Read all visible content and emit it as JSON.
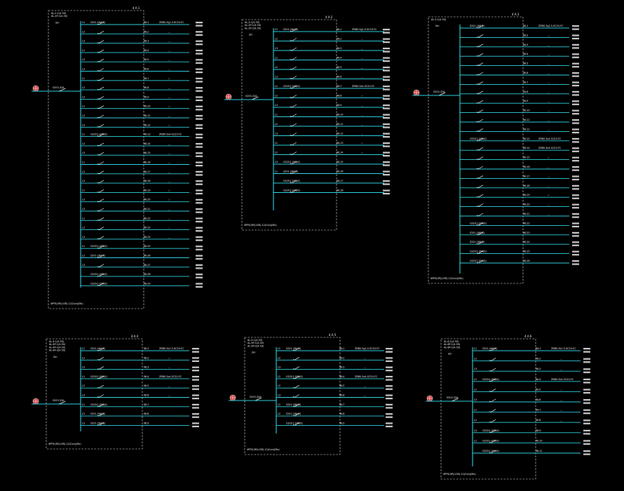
{
  "panels": [
    {
      "id": "p1",
      "label": "4 A 1",
      "header": [
        "AL-1-1(4-50)",
        "AL-1P-1(4-50)"
      ],
      "subtitle": "Sm",
      "incomer": "S203-32A",
      "footer": "4PPS(4P)(LSR)-12(Con)(Mo)",
      "feeders": [
        {
          "phase": "L1",
          "breaker": "S201-16A(K)",
          "circuit": "WL1",
          "cable": "ZRBV-3x2.5-SC20-FC",
          "mark": "..."
        },
        {
          "phase": "L2",
          "breaker": "",
          "circuit": "WL2",
          "cable": "",
          "mark": "..."
        },
        {
          "phase": "L3",
          "breaker": "",
          "circuit": "WL3",
          "cable": "",
          "mark": "..."
        },
        {
          "phase": "L1",
          "breaker": "",
          "circuit": "WL4",
          "cable": "",
          "mark": "..."
        },
        {
          "phase": "L2",
          "breaker": "",
          "circuit": "WL5",
          "cable": "",
          "mark": "..."
        },
        {
          "phase": "L3",
          "breaker": "",
          "circuit": "WL6",
          "cable": "",
          "mark": "..."
        },
        {
          "phase": "L1",
          "breaker": "",
          "circuit": "WL7",
          "cable": "",
          "mark": "✓"
        },
        {
          "phase": "L2",
          "breaker": "",
          "circuit": "WL8",
          "cable": "",
          "mark": "..."
        },
        {
          "phase": "L3",
          "breaker": "",
          "circuit": "WL9",
          "cable": "",
          "mark": "..."
        },
        {
          "phase": "L1",
          "breaker": "",
          "circuit": "WL10",
          "cable": "",
          "mark": "✓"
        },
        {
          "phase": "L2",
          "breaker": "",
          "circuit": "WL11",
          "cable": "",
          "mark": "..."
        },
        {
          "phase": "L3",
          "breaker": "",
          "circuit": "WL12",
          "cable": "",
          "mark": "✓"
        },
        {
          "phase": "L1",
          "breaker": "GS201-20A(K)",
          "circuit": "WL13",
          "cable": "ZRBV-3x4-SC20-FC",
          "mark": ""
        },
        {
          "phase": "L2",
          "breaker": "",
          "circuit": "WL14",
          "cable": "",
          "mark": "..."
        },
        {
          "phase": "L3",
          "breaker": "",
          "circuit": "WL15",
          "cable": "",
          "mark": "..."
        },
        {
          "phase": "L1",
          "breaker": "",
          "circuit": "WL16",
          "cable": "",
          "mark": "..."
        },
        {
          "phase": "L2",
          "breaker": "",
          "circuit": "WL17",
          "cable": "",
          "mark": "..."
        },
        {
          "phase": "L3",
          "breaker": "",
          "circuit": "WL18",
          "cable": "",
          "mark": "..."
        },
        {
          "phase": "L1",
          "breaker": "",
          "circuit": "WL19",
          "cable": "",
          "mark": "✓"
        },
        {
          "phase": "L2",
          "breaker": "",
          "circuit": "WL20",
          "cable": "",
          "mark": "✓"
        },
        {
          "phase": "L3",
          "breaker": "",
          "circuit": "WL21",
          "cable": "",
          "mark": "..."
        },
        {
          "phase": "L1",
          "breaker": "",
          "circuit": "WL22",
          "cable": "",
          "mark": "..."
        },
        {
          "phase": "L2",
          "breaker": "",
          "circuit": "WL23",
          "cable": "",
          "mark": "..."
        },
        {
          "phase": "L3",
          "breaker": "",
          "circuit": "WL24",
          "cable": "",
          "mark": "..."
        },
        {
          "phase": "L1",
          "breaker": "GS201-20A(K)",
          "circuit": "WL25",
          "cable": "",
          "mark": ""
        },
        {
          "phase": "L2",
          "breaker": "S201-16A(K)",
          "circuit": "WL26",
          "cable": "",
          "mark": ""
        },
        {
          "phase": "L3",
          "breaker": "",
          "circuit": "WL27",
          "cable": "",
          "mark": ""
        },
        {
          "phase": "",
          "breaker": "GS201-20A(K)",
          "circuit": "WL28",
          "cable": "",
          "mark": ""
        },
        {
          "phase": "",
          "breaker": "GS201-20A(K)",
          "circuit": "WL29",
          "cable": "",
          "mark": ""
        }
      ]
    },
    {
      "id": "p2",
      "label": "4 A 2",
      "header": [
        "AL-2-1(4-50)",
        "AL-2P-1(4-50)",
        "AL-2P-2(4-50)"
      ],
      "subtitle": "Sm",
      "incomer": "S203-32A",
      "footer": "4PPS(4P)(LSR)-12(Con)(Mo)",
      "feeders": [
        {
          "phase": "L1",
          "breaker": "S201-16A(K)",
          "circuit": "WL1",
          "cable": "ZRBV-3x2.5-SC20-FC",
          "mark": "..."
        },
        {
          "phase": "L2",
          "breaker": "",
          "circuit": "WL2",
          "cable": "",
          "mark": "..."
        },
        {
          "phase": "L3",
          "breaker": "",
          "circuit": "WL3",
          "cable": "",
          "mark": "..."
        },
        {
          "phase": "L1",
          "breaker": "",
          "circuit": "WL4",
          "cable": "",
          "mark": "..."
        },
        {
          "phase": "L2",
          "breaker": "",
          "circuit": "WL5",
          "cable": "",
          "mark": "..."
        },
        {
          "phase": "L3",
          "breaker": "",
          "circuit": "WL6",
          "cable": "",
          "mark": "..."
        },
        {
          "phase": "L1",
          "breaker": "GS201-20A(K)",
          "circuit": "WL7",
          "cable": "ZRBV-3x4-SC20-FC",
          "mark": ""
        },
        {
          "phase": "L2",
          "breaker": "",
          "circuit": "WL8",
          "cable": "",
          "mark": "✓"
        },
        {
          "phase": "L3",
          "breaker": "",
          "circuit": "WL9",
          "cable": "",
          "mark": "..."
        },
        {
          "phase": "L1",
          "breaker": "",
          "circuit": "WL10",
          "cable": "",
          "mark": "..."
        },
        {
          "phase": "L2",
          "breaker": "",
          "circuit": "WL11",
          "cable": "",
          "mark": "..."
        },
        {
          "phase": "L3",
          "breaker": "",
          "circuit": "WL12",
          "cable": "",
          "mark": "..."
        },
        {
          "phase": "L1",
          "breaker": "",
          "circuit": "WL13",
          "cable": "",
          "mark": "✓"
        },
        {
          "phase": "L2",
          "breaker": "",
          "circuit": "WL14",
          "cable": "",
          "mark": "✓"
        },
        {
          "phase": "L3",
          "breaker": "GS201-20A(K)",
          "circuit": "WL15",
          "cable": "",
          "mark": ""
        },
        {
          "phase": "L1",
          "breaker": "S201-16A(K)",
          "circuit": "WL16",
          "cable": "",
          "mark": ""
        },
        {
          "phase": "",
          "breaker": "GS201-20A(K)",
          "circuit": "WL17",
          "cable": "",
          "mark": ""
        },
        {
          "phase": "",
          "breaker": "GS201-20A(K)",
          "circuit": "WL18",
          "cable": "",
          "mark": ""
        }
      ]
    },
    {
      "id": "p3",
      "label": "4 A 3",
      "header": [
        "AL-3-1(4-50)"
      ],
      "subtitle": "Sm",
      "incomer": "S203-32A",
      "footer": "4PPS(4P)(LSR)-12(Con)(Mo)",
      "feeders": [
        {
          "phase": "",
          "breaker": "S201-16A(K)",
          "circuit": "WL1",
          "cable": "ZRBV-3x2.5-SC20-FC",
          "mark": "..."
        },
        {
          "phase": "",
          "breaker": "",
          "circuit": "WL2",
          "cable": "",
          "mark": "..."
        },
        {
          "phase": "",
          "breaker": "",
          "circuit": "WL3",
          "cable": "",
          "mark": "..."
        },
        {
          "phase": "",
          "breaker": "",
          "circuit": "WL4",
          "cable": "",
          "mark": "..."
        },
        {
          "phase": "",
          "breaker": "",
          "circuit": "WL5",
          "cable": "",
          "mark": "..."
        },
        {
          "phase": "",
          "breaker": "",
          "circuit": "WL6",
          "cable": "",
          "mark": "..."
        },
        {
          "phase": "",
          "breaker": "",
          "circuit": "WL7",
          "cable": "",
          "mark": "..."
        },
        {
          "phase": "",
          "breaker": "",
          "circuit": "WL8",
          "cable": "",
          "mark": "..."
        },
        {
          "phase": "",
          "breaker": "",
          "circuit": "WL9",
          "cable": "",
          "mark": "..."
        },
        {
          "phase": "",
          "breaker": "",
          "circuit": "WL10",
          "cable": "",
          "mark": "..."
        },
        {
          "phase": "",
          "breaker": "",
          "circuit": "WL11",
          "cable": "",
          "mark": "..."
        },
        {
          "phase": "",
          "breaker": "",
          "circuit": "WL12",
          "cable": "",
          "mark": "..."
        },
        {
          "phase": "",
          "breaker": "GS201-20A(K)",
          "circuit": "WL13",
          "cable": "ZRBV-3x4-SC20-FC",
          "mark": ""
        },
        {
          "phase": "",
          "breaker": "",
          "circuit": "WL14",
          "cable": "ZRBV-3x4-SC20-FC",
          "mark": ""
        },
        {
          "phase": "",
          "breaker": "",
          "circuit": "WL15",
          "cable": "",
          "mark": "✓"
        },
        {
          "phase": "",
          "breaker": "",
          "circuit": "WL16",
          "cable": "",
          "mark": "..."
        },
        {
          "phase": "",
          "breaker": "",
          "circuit": "WL17",
          "cable": "",
          "mark": "..."
        },
        {
          "phase": "",
          "breaker": "",
          "circuit": "WL18",
          "cable": "",
          "mark": "..."
        },
        {
          "phase": "",
          "breaker": "",
          "circuit": "WL19",
          "cable": "",
          "mark": "✓"
        },
        {
          "phase": "",
          "breaker": "",
          "circuit": "WL20",
          "cable": "",
          "mark": "..."
        },
        {
          "phase": "",
          "breaker": "",
          "circuit": "WL21",
          "cable": "",
          "mark": "..."
        },
        {
          "phase": "",
          "breaker": "GS201-20A(K)",
          "circuit": "WL22",
          "cable": "",
          "mark": ""
        },
        {
          "phase": "",
          "breaker": "S201-16A(K)",
          "circuit": "WL23",
          "cable": "",
          "mark": ""
        },
        {
          "phase": "",
          "breaker": "S201-16A(K)",
          "circuit": "WL24",
          "cable": "",
          "mark": ""
        },
        {
          "phase": "",
          "breaker": "GS201-20A(K)",
          "circuit": "WL25",
          "cable": "",
          "mark": ""
        },
        {
          "phase": "",
          "breaker": "GS201-20A(K)",
          "circuit": "WL26",
          "cable": "",
          "mark": ""
        }
      ]
    },
    {
      "id": "p4",
      "label": "4 A 4",
      "header": [
        "AL-4-1(4-50)",
        "AL-4P-1(4-50)",
        "AL-4P-2(4-50)",
        "AL-4P-3(4-50)"
      ],
      "subtitle": "Sm",
      "incomer": "S203-32A",
      "footer": "4PPS(4P)(LSR)-12(Con)(Mo)",
      "feeders": [
        {
          "phase": "L1",
          "breaker": "S201-16A(K)",
          "circuit": "WL1",
          "cable": "ZRBV-3x2.5-SC20-FC",
          "mark": ""
        },
        {
          "phase": "L2",
          "breaker": "",
          "circuit": "WL2",
          "cable": "",
          "mark": "✓"
        },
        {
          "phase": "L3",
          "breaker": "",
          "circuit": "WL3",
          "cable": "",
          "mark": "..."
        },
        {
          "phase": "L1",
          "breaker": "GS201-20A(K)",
          "circuit": "WL4",
          "cable": "ZRBV-3x4-SC20-FC",
          "mark": ""
        },
        {
          "phase": "L2",
          "breaker": "",
          "circuit": "WL5",
          "cable": "",
          "mark": "..."
        },
        {
          "phase": "L3",
          "breaker": "",
          "circuit": "WL6",
          "cable": "",
          "mark": "..."
        },
        {
          "phase": "L1",
          "breaker": "GS201-20A(K)",
          "circuit": "WL7",
          "cable": "",
          "mark": ""
        },
        {
          "phase": "L2",
          "breaker": "S201-16A(K)",
          "circuit": "WL8",
          "cable": "",
          "mark": ""
        },
        {
          "phase": "L3",
          "breaker": "S201-16A(K)",
          "circuit": "WL9",
          "cable": "",
          "mark": ""
        }
      ]
    },
    {
      "id": "p5",
      "label": "4 A 5",
      "header": [
        "AL-5-1(4-50)",
        "AL-5P-1(4-50)",
        "AL-5P-2(4-50)"
      ],
      "subtitle": "Sm",
      "incomer": "S203-32A",
      "footer": "4PPS(4P)(LSR)-12(Con)(Mo)",
      "feeders": [
        {
          "phase": "L1",
          "breaker": "S201-16A(K)",
          "circuit": "WL1",
          "cable": "ZRBV-3x2.5-SC20-FC",
          "mark": "..."
        },
        {
          "phase": "L2",
          "breaker": "",
          "circuit": "WL2",
          "cable": "",
          "mark": "..."
        },
        {
          "phase": "L3",
          "breaker": "",
          "circuit": "WL3",
          "cable": "",
          "mark": "..."
        },
        {
          "phase": "L1",
          "breaker": "GS201-20A(K)",
          "circuit": "WL4",
          "cable": "ZRBV-3x4-SC20-FC",
          "mark": ""
        },
        {
          "phase": "L2",
          "breaker": "",
          "circuit": "WL5",
          "cable": "",
          "mark": "..."
        },
        {
          "phase": "L3",
          "breaker": "",
          "circuit": "WL6",
          "cable": "",
          "mark": "..."
        },
        {
          "phase": "L1",
          "breaker": "S201-16A(K)",
          "circuit": "WL7",
          "cable": "",
          "mark": ""
        },
        {
          "phase": "L2",
          "breaker": "S201-16A(K)",
          "circuit": "WL8",
          "cable": "",
          "mark": ""
        },
        {
          "phase": "",
          "breaker": "GS201-20A(K)",
          "circuit": "WL9",
          "cable": "",
          "mark": ""
        }
      ]
    },
    {
      "id": "p6",
      "label": "4 A 6",
      "header": [
        "AL-6-1(4-50)",
        "AL-6P-1(4-50)",
        "AL-6P-2(4-50)"
      ],
      "subtitle": "Sm",
      "incomer": "S203-32A",
      "footer": "4PPS(4P)(LSR)-12(Con)(Mo)",
      "feeders": [
        {
          "phase": "L1",
          "breaker": "S201-16A(K)",
          "circuit": "WL1",
          "cable": "ZRBV-3x2.5-SC20-FC",
          "mark": ""
        },
        {
          "phase": "L2",
          "breaker": "",
          "circuit": "WL2",
          "cable": "",
          "mark": "..."
        },
        {
          "phase": "L3",
          "breaker": "",
          "circuit": "WL3",
          "cable": "",
          "mark": "..."
        },
        {
          "phase": "L1",
          "breaker": "GS201-20A(K)",
          "circuit": "WL4",
          "cable": "ZRBV-3x4-SC20-FC",
          "mark": ""
        },
        {
          "phase": "L2",
          "breaker": "",
          "circuit": "WL5",
          "cable": "",
          "mark": "..."
        },
        {
          "phase": "L3",
          "breaker": "",
          "circuit": "WL6",
          "cable": "",
          "mark": "..."
        },
        {
          "phase": "L1",
          "breaker": "",
          "circuit": "WL7",
          "cable": "",
          "mark": "..."
        },
        {
          "phase": "L2",
          "breaker": "",
          "circuit": "WL8",
          "cable": "",
          "mark": "..."
        },
        {
          "phase": "L3",
          "breaker": "GS201-20A(K)",
          "circuit": "WL9",
          "cable": "",
          "mark": ""
        },
        {
          "phase": "L1",
          "breaker": "GS201-20A(K)",
          "circuit": "WL10",
          "cable": "",
          "mark": ""
        },
        {
          "phase": "",
          "breaker": "GS201-20A(K)",
          "circuit": "WL11",
          "cable": "",
          "mark": ""
        }
      ]
    }
  ]
}
